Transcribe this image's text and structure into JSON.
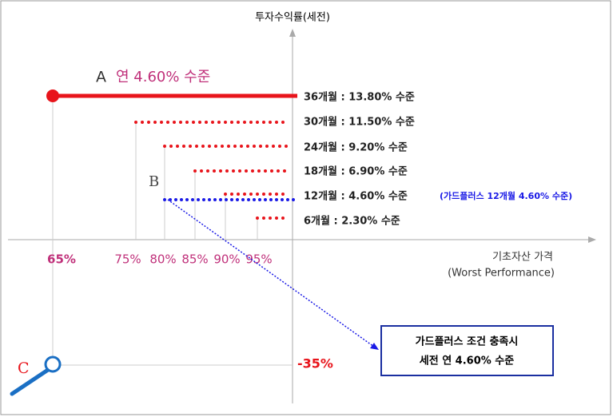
{
  "axis_title": "투자수익률(세전)",
  "a": {
    "letter": "A",
    "label": "연 4.60% 수준"
  },
  "levels": [
    "36개월 : 13.80% 수준",
    "30개월 : 11.50% 수준",
    "24개월 : 9.20% 수준",
    "18개월 : 6.90% 수준",
    "12개월 : 4.60% 수준",
    "6개월 : 2.30% 수준"
  ],
  "guard_note": "(가드플러스 12개월 4.60% 수준)",
  "b": "B",
  "barriers": [
    "65%",
    "75%",
    "80%",
    "85%",
    "90%",
    "95%"
  ],
  "x_axis_title": [
    "기초자산 가격",
    "(Worst Performance)"
  ],
  "box": [
    "가드플러스 조건 충족시",
    "세전 연 4.60% 수준"
  ],
  "c": {
    "letter": "C",
    "label": "-35%"
  }
}
